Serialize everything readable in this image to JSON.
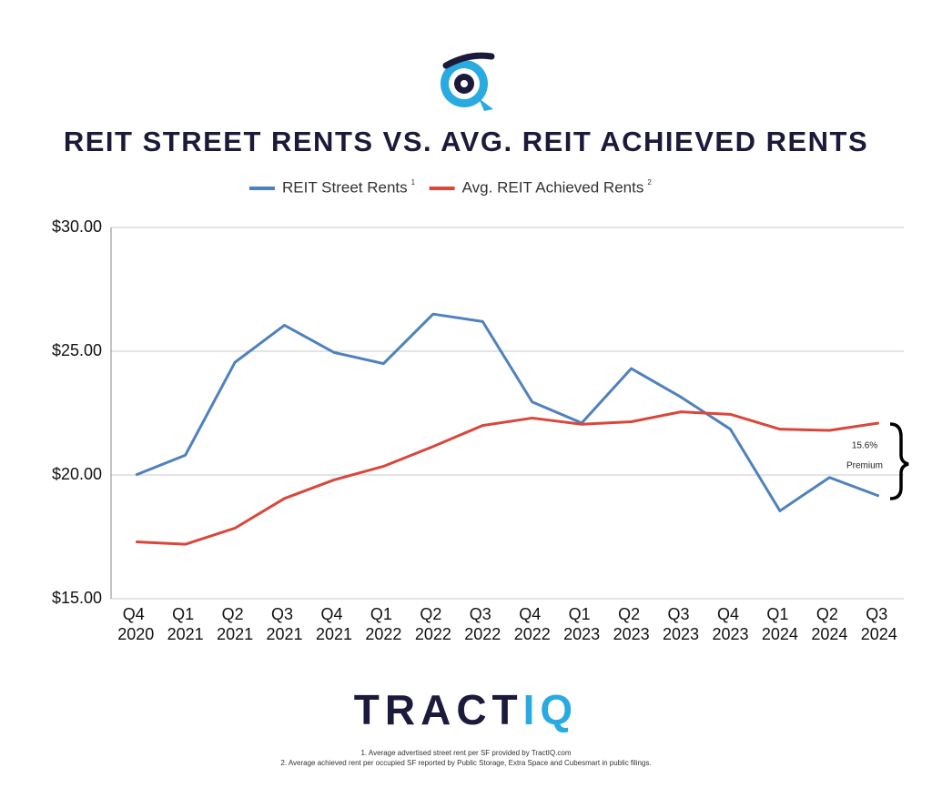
{
  "chart_data": {
    "type": "line",
    "title": "REIT STREET RENTS VS. AVG. REIT ACHIEVED RENTS",
    "categories": [
      "Q4 2020",
      "Q1 2021",
      "Q2 2021",
      "Q3 2021",
      "Q4 2021",
      "Q1 2022",
      "Q2 2022",
      "Q3 2022",
      "Q4 2022",
      "Q1 2023",
      "Q2 2023",
      "Q3 2023",
      "Q4 2023",
      "Q1 2024",
      "Q2 2024",
      "Q3 2024"
    ],
    "series": [
      {
        "name": "REIT Street Rents",
        "note": "1",
        "color": "#4f81bd",
        "values": [
          20.0,
          20.8,
          24.55,
          26.05,
          24.95,
          24.5,
          26.5,
          26.2,
          22.95,
          22.1,
          24.3,
          23.15,
          21.85,
          18.55,
          19.9,
          19.15
        ]
      },
      {
        "name": "Avg. REIT Achieved Rents",
        "note": "2",
        "color": "#d9473b",
        "values": [
          17.3,
          17.2,
          17.85,
          19.05,
          19.8,
          20.35,
          21.15,
          22.0,
          22.3,
          22.05,
          22.15,
          22.55,
          22.45,
          21.85,
          21.8,
          22.1
        ]
      }
    ],
    "ylim": [
      15,
      30
    ],
    "yticks": [
      {
        "value": 15,
        "label": "$15.00"
      },
      {
        "value": 20,
        "label": "$20.00"
      },
      {
        "value": 25,
        "label": "$25.00"
      },
      {
        "value": 30,
        "label": "$30.00"
      }
    ],
    "grid": true,
    "annotation": {
      "value": "15.6%",
      "label": "Premium"
    }
  },
  "brand": {
    "first": "TRACT",
    "second": "IQ"
  },
  "footnotes": [
    "1. Average advertised street rent per SF provided by TractIQ.com",
    "2. Average achieved rent per occupied SF reported by Public Storage, Extra Space and Cubesmart in public filings."
  ]
}
